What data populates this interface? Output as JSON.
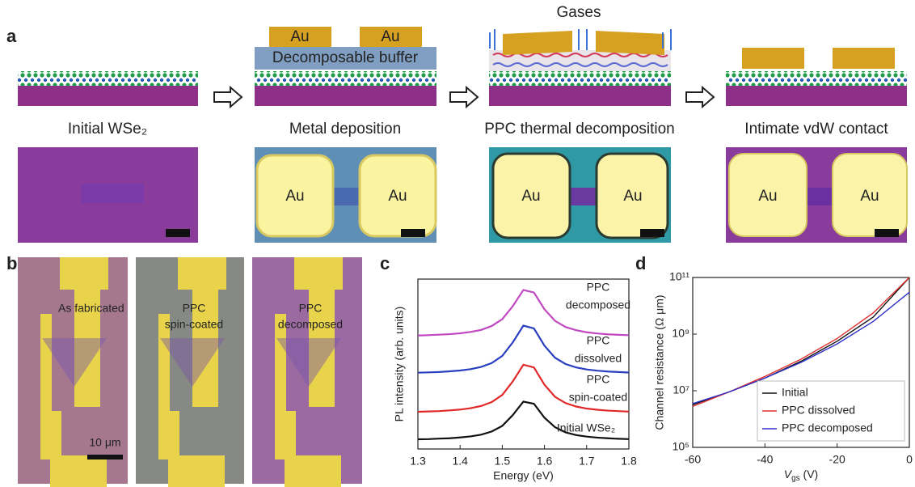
{
  "panels": {
    "a": "a",
    "b": "b",
    "c": "c",
    "d": "d"
  },
  "schematic": {
    "au": "Au",
    "buffer": "Decomposable buffer",
    "gases": "Gases",
    "captions": [
      "Initial WSe₂",
      "Metal deposition",
      "PPC thermal decomposition",
      "Intimate vdW contact"
    ]
  },
  "micrographs_b": {
    "labels": [
      [
        "As fabricated"
      ],
      [
        "PPC",
        "spin-coated"
      ],
      [
        "PPC",
        "decomposed"
      ]
    ],
    "scale_bar": "10 μm"
  },
  "chart_data": [
    {
      "type": "line",
      "xlabel": "Energy (eV)",
      "ylabel": "PL intensity (arb. units)",
      "x": [
        1.3,
        1.325,
        1.35,
        1.375,
        1.4,
        1.425,
        1.45,
        1.475,
        1.5,
        1.525,
        1.55,
        1.575,
        1.6,
        1.625,
        1.65,
        1.675,
        1.7,
        1.725,
        1.75,
        1.775,
        1.8
      ],
      "xlim": [
        1.3,
        1.8
      ],
      "xticks": [
        1.3,
        1.4,
        1.5,
        1.6,
        1.7,
        1.8
      ],
      "ylim": [
        0,
        10
      ],
      "series": [
        {
          "label_lines": [
            "Initial WSe₂"
          ],
          "color": "#111111",
          "values": [
            0.57,
            0.58,
            0.61,
            0.63,
            0.68,
            0.74,
            0.84,
            1.03,
            1.36,
            2.0,
            2.79,
            2.66,
            1.84,
            1.28,
            0.98,
            0.82,
            0.73,
            0.67,
            0.63,
            0.6,
            0.58
          ]
        },
        {
          "label_lines": [
            "PPC",
            "spin-coated"
          ],
          "color": "#e02828",
          "values": [
            2.19,
            2.21,
            2.23,
            2.27,
            2.32,
            2.4,
            2.53,
            2.76,
            3.18,
            3.98,
            4.96,
            4.8,
            3.78,
            3.07,
            2.7,
            2.5,
            2.38,
            2.31,
            2.26,
            2.23,
            2.2
          ]
        },
        {
          "label_lines": [
            "PPC",
            "dissolved"
          ],
          "color": "#2a3fc0",
          "values": [
            4.49,
            4.51,
            4.53,
            4.57,
            4.62,
            4.7,
            4.83,
            5.06,
            5.48,
            6.28,
            7.26,
            7.1,
            6.08,
            5.37,
            5.0,
            4.8,
            4.68,
            4.61,
            4.56,
            4.53,
            4.5
          ]
        },
        {
          "label_lines": [
            "PPC",
            "decomposed"
          ],
          "color": "#c048c0",
          "values": [
            6.68,
            6.7,
            6.73,
            6.76,
            6.81,
            6.89,
            7.01,
            7.24,
            7.64,
            8.41,
            9.36,
            9.21,
            8.22,
            7.54,
            7.18,
            6.99,
            6.87,
            6.8,
            6.75,
            6.72,
            6.7
          ]
        }
      ]
    },
    {
      "type": "line",
      "log_y": true,
      "xlabel": {
        "symbol": "V",
        "subscript": "gs",
        "unit": " (V)"
      },
      "ylabel": "Channel resistance (Ω μm)",
      "x": [
        -60,
        -50,
        -40,
        -30,
        -20,
        -10,
        0
      ],
      "xlim": [
        -60,
        0
      ],
      "xticks": [
        -60,
        -40,
        -20,
        0
      ],
      "ylim": [
        100000,
        100000000000
      ],
      "yticks": [
        {
          "value": 100000,
          "label": "10⁵"
        },
        {
          "value": 10000000,
          "label": "10⁷"
        },
        {
          "value": 1000000000,
          "label": "10⁹"
        },
        {
          "value": 100000000000,
          "label": "10¹¹"
        }
      ],
      "legend": "lower right",
      "series": [
        {
          "name": "Initial",
          "color": "#111111",
          "values": [
            3200000,
            9000000,
            28000000,
            110000000,
            560000000,
            4000000000,
            100000000000
          ]
        },
        {
          "name": "PPC dissolved",
          "color": "#e03030",
          "values": [
            2800000,
            9000000,
            32000000,
            130000000,
            700000000,
            5600000000,
            100000000000
          ]
        },
        {
          "name": "PPC decomposed",
          "color": "#3030c8",
          "values": [
            3500000,
            9000000,
            28000000,
            100000000,
            450000000,
            2800000000,
            30000000000
          ]
        }
      ]
    }
  ]
}
